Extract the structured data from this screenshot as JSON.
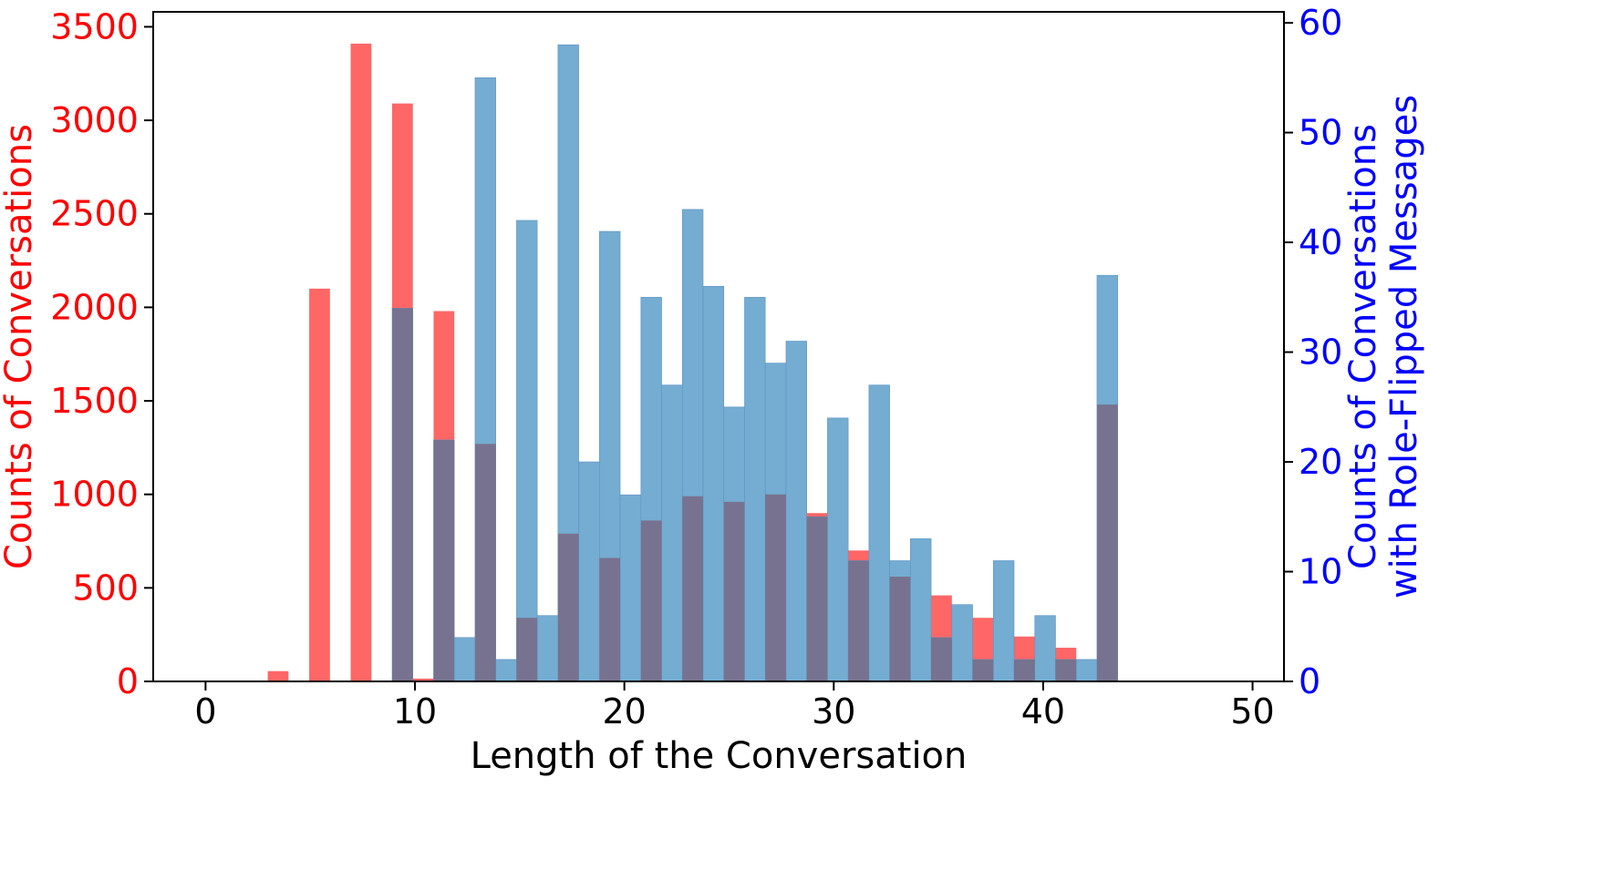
{
  "chart_data": {
    "type": "bar",
    "xlabel": "Length of the Conversation",
    "ylabel_left": "Counts of Conversations",
    "ylabel_right_lines": [
      "Counts of Conversations",
      "with Role-Flipped Messages"
    ],
    "xlim": [
      -2.5,
      51.5
    ],
    "ylim_left": [
      0,
      3580
    ],
    "ylim_right": [
      0,
      61
    ],
    "x_ticks": [
      0,
      10,
      20,
      30,
      40,
      50
    ],
    "y_ticks_left": [
      0,
      500,
      1000,
      1500,
      2000,
      2500,
      3000,
      3500
    ],
    "y_ticks_right": [
      0,
      10,
      20,
      30,
      40,
      50,
      60
    ],
    "bin_width": 0.99,
    "bin_starts": [
      2.97,
      3.96,
      4.95,
      5.94,
      6.93,
      7.92,
      8.91,
      9.9,
      10.89,
      11.88,
      12.87,
      13.86,
      14.85,
      15.84,
      16.83,
      17.82,
      18.81,
      19.8,
      20.79,
      21.78,
      22.77,
      23.76,
      24.75,
      25.74,
      26.73,
      27.72,
      28.71,
      29.7,
      30.69,
      31.68,
      32.67,
      33.66,
      34.65,
      35.64,
      36.63,
      37.62,
      38.61,
      39.6,
      40.59,
      41.58,
      42.57
    ],
    "series": [
      {
        "name": "",
        "axis": "left",
        "color": "#ff6666",
        "values": [
          55,
          0,
          2100,
          0,
          3410,
          0,
          3090,
          15,
          1980,
          0,
          1270,
          0,
          340,
          0,
          790,
          0,
          660,
          0,
          860,
          0,
          990,
          0,
          960,
          0,
          1000,
          0,
          900,
          0,
          700,
          0,
          560,
          0,
          460,
          0,
          340,
          0,
          240,
          0,
          180,
          0,
          1480
        ]
      },
      {
        "name": "",
        "axis": "right",
        "color": "#74acd2",
        "values": [
          0,
          0,
          0,
          0,
          0,
          0,
          34,
          0,
          22,
          4,
          55,
          2,
          42,
          6,
          58,
          20,
          41,
          17,
          35,
          27,
          43,
          36,
          25,
          35,
          29,
          31,
          15,
          24,
          11,
          27,
          11,
          13,
          4,
          7,
          2,
          11,
          2,
          6,
          2,
          2,
          37
        ]
      }
    ],
    "overlap_color": "#77728f"
  }
}
